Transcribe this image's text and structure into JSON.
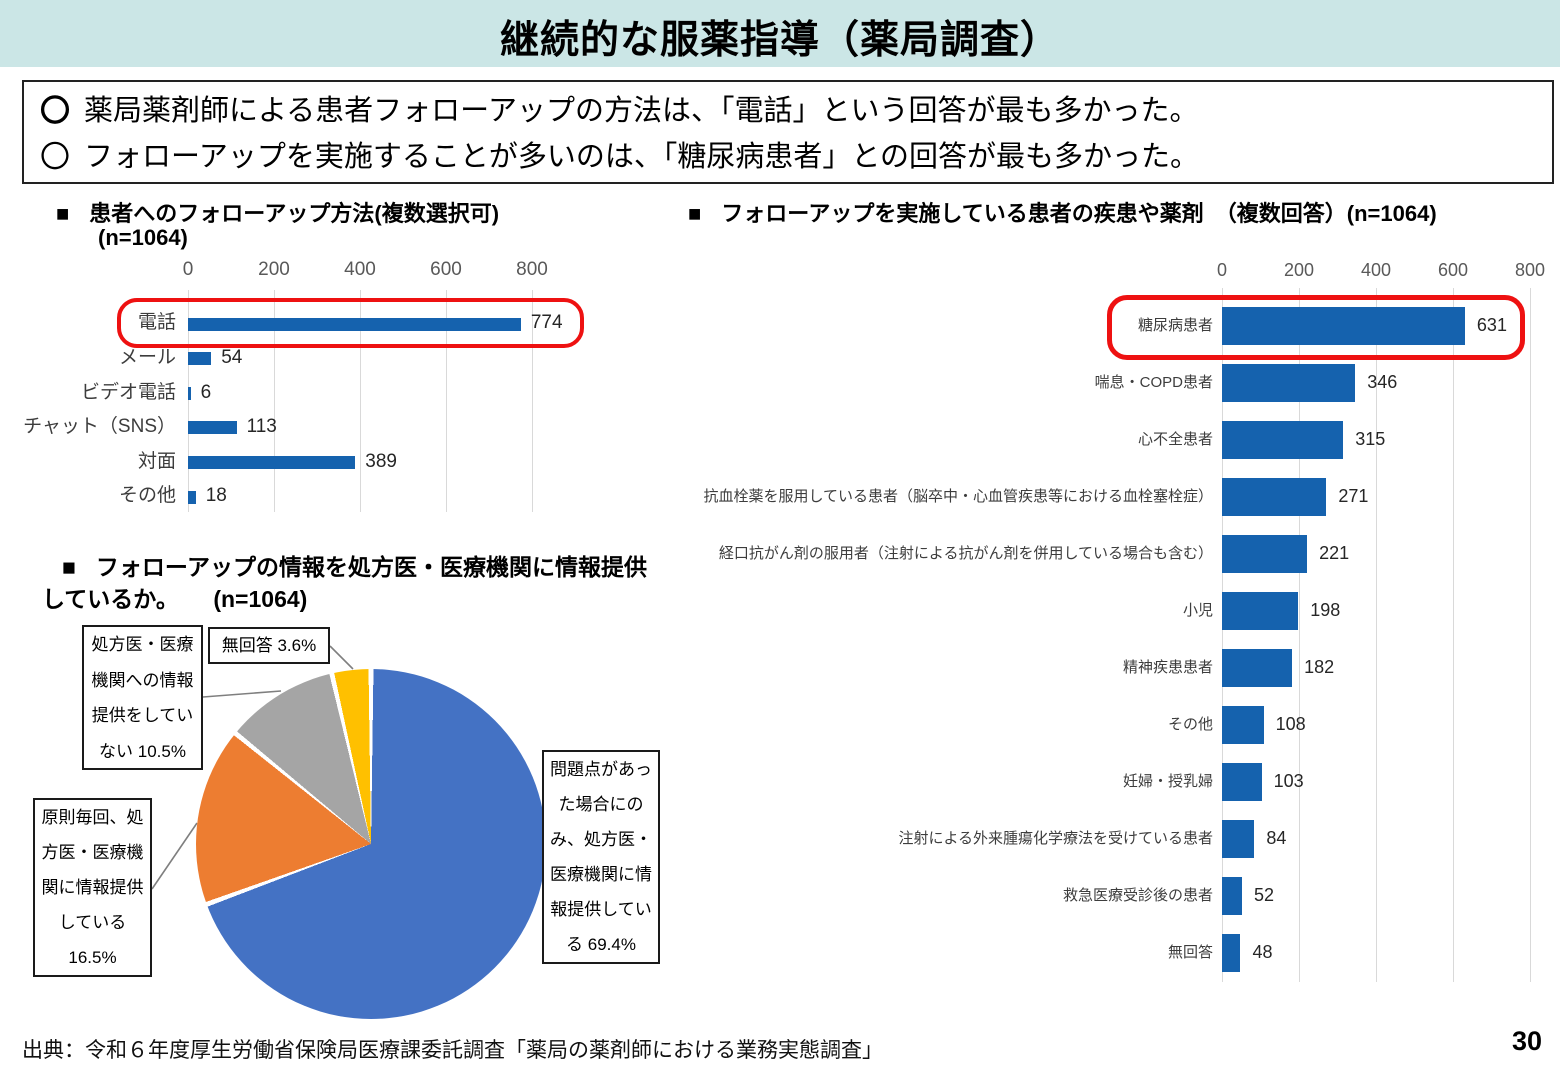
{
  "header": {
    "title": "継続的な服薬指導（薬局調査）"
  },
  "summary": {
    "bullets": [
      {
        "marker": "〇",
        "text": "薬局薬剤師による患者フォローアップの方法は、「電話」という回答が最も多かった。"
      },
      {
        "marker": "〇",
        "text": "フォローアップを実施することが多いのは、「糖尿病患者」との回答が最も多かった。"
      }
    ]
  },
  "chart_data": [
    {
      "id": "followup-methods",
      "type": "bar",
      "orientation": "horizontal",
      "marker": "■",
      "title": "患者へのフォローアップ方法(複数選択可)",
      "subtitle": "(n=1064)",
      "categories": [
        "電話",
        "メール",
        "ビデオ電話",
        "チャット（SNS）",
        "対面",
        "その他"
      ],
      "values": [
        774,
        54,
        6,
        113,
        389,
        18
      ],
      "ticks": [
        "0",
        "200",
        "400",
        "600",
        "800"
      ],
      "xlim": [
        0,
        800
      ],
      "grid": "vertical",
      "highlight_category": "電話",
      "highlight_index": 0
    },
    {
      "id": "followup-target-patients",
      "type": "bar",
      "orientation": "horizontal",
      "marker": "■",
      "title": "フォローアップを実施している患者の疾患や薬剤　（複数回答）(n=1064)",
      "categories": [
        "糖尿病患者",
        "喘息・COPD患者",
        "心不全患者",
        "抗血栓薬を服用している患者（脳卒中・心血管疾患等における血栓塞栓症）",
        "経口抗がん剤の服用者（注射による抗がん剤を併用している場合も含む）",
        "小児",
        "精神疾患患者",
        "その他",
        "妊婦・授乳婦",
        "注射による外来腫瘍化学療法を受けている患者",
        "救急医療受診後の患者",
        "無回答"
      ],
      "values": [
        631,
        346,
        315,
        271,
        221,
        198,
        182,
        108,
        103,
        84,
        52,
        48
      ],
      "ticks": [
        "0",
        "200",
        "400",
        "600",
        "800"
      ],
      "xlim": [
        0,
        800
      ],
      "grid": "vertical",
      "highlight_category": "糖尿病患者",
      "highlight_index": 0
    },
    {
      "id": "info-provision-to-prescriber",
      "type": "pie",
      "marker": "■",
      "title_line1": "フォローアップの情報を処方医・医療機関に情報提供",
      "title_line2": "しているか。　　(n=1064)",
      "slices": [
        {
          "label": "問題点があった場合にのみ、処方医・医療機関に情報提供している",
          "pct": 69.4,
          "color": "#4472C4",
          "box_lines": [
            "問題点があっ",
            "た場合にの",
            "み、処方医・",
            "医療機関に情",
            "報提供してい",
            "る 69.4%"
          ]
        },
        {
          "label": "原則毎回、処方医・医療機関に情報提供している",
          "pct": 16.5,
          "color": "#ED7D31",
          "box_lines": [
            "原則毎回、処",
            "方医・医療機",
            "関に情報提供",
            "している",
            "16.5%"
          ]
        },
        {
          "label": "処方医・医療機関への情報提供をしていない",
          "pct": 10.5,
          "color": "#A5A5A5",
          "box_lines": [
            "処方医・医療",
            "機関への情報",
            "提供をしてい",
            "ない 10.5%"
          ]
        },
        {
          "label": "無回答",
          "pct": 3.6,
          "color": "#FFC000",
          "box_lines": [
            "無回答 3.6%"
          ]
        }
      ]
    }
  ],
  "footer": {
    "source": "出典：令和６年度厚生労働省保険局医療課委託調査「薬局の薬剤師における業務実態調査」",
    "page": "30"
  },
  "colors": {
    "header_bg": "#CBE6E6",
    "bar_blue": "#1562AE",
    "highlight_red": "#EE1111",
    "grid": "#D9D9D9",
    "tick_text": "#595959",
    "value_text": "#262626",
    "leader_line": "#7F7F7F"
  }
}
